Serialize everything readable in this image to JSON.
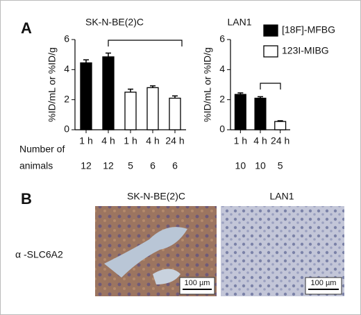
{
  "panel_labels": [
    "A",
    "B"
  ],
  "animals_label": [
    "Number of",
    "animals"
  ],
  "chart_data": [
    {
      "type": "bar",
      "title": "SK-N-BE(2)C",
      "y_label": "%ID/mL or %ID/g",
      "categories": [
        "1 h",
        "4 h",
        "1 h",
        "4 h",
        "24 h"
      ],
      "series": [
        {
          "color": "#000000",
          "values": [
            4.45,
            4.85,
            null,
            null,
            null
          ],
          "errors": [
            0.2,
            0.25,
            null,
            null,
            null
          ]
        },
        {
          "color": "#ffffff",
          "values": [
            null,
            null,
            2.5,
            2.8,
            2.1
          ],
          "errors": [
            null,
            null,
            0.2,
            0.12,
            0.15
          ]
        }
      ],
      "animal_counts": [
        12,
        12,
        5,
        6,
        6
      ],
      "ylim": [
        0,
        6
      ],
      "yticks": [
        0,
        2,
        4,
        6
      ]
    },
    {
      "type": "bar",
      "title": "LAN1",
      "y_label": "%ID/mL or %ID/g",
      "categories": [
        "1 h",
        "4 h",
        "24 h"
      ],
      "series": [
        {
          "name": "[18F]-MFBG",
          "color": "#000000",
          "values": [
            2.35,
            2.1,
            null
          ],
          "errors": [
            0.1,
            0.1,
            null
          ]
        },
        {
          "name": "123I-MIBG",
          "color": "#ffffff",
          "values": [
            null,
            null,
            0.55
          ],
          "errors": [
            null,
            null,
            0.05
          ]
        }
      ],
      "animal_counts": [
        10,
        10,
        5
      ],
      "ylim": [
        0,
        6
      ],
      "yticks": [
        0,
        2,
        4,
        6
      ]
    }
  ],
  "panel_b": {
    "row_label": "α -SLC6A2",
    "images": [
      {
        "title": "SK-N-BE(2)C",
        "scale_bar": "100 µm"
      },
      {
        "title": "LAN1",
        "scale_bar": "100 µm"
      }
    ]
  }
}
